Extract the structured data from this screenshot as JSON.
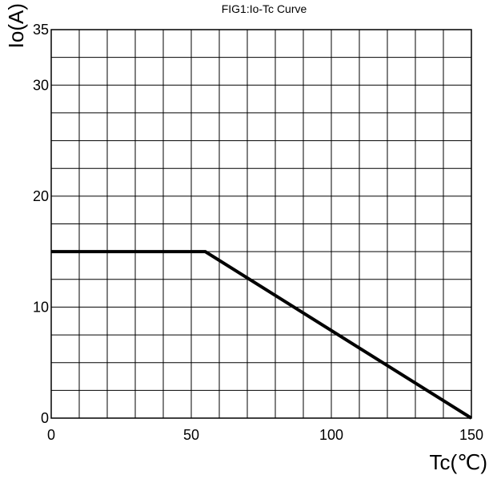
{
  "chart_data": {
    "type": "line",
    "title": "FIG1:Io-Tc Curve",
    "xlabel": "Tc(℃)",
    "ylabel": "Io(A)",
    "xlim": [
      0,
      150
    ],
    "ylim": [
      0,
      35
    ],
    "x_ticks": [
      0,
      50,
      100,
      150
    ],
    "y_ticks": [
      0,
      10,
      20,
      30,
      35
    ],
    "grid": true,
    "grid_x_step": 10,
    "grid_y_step": 2.5,
    "series": [
      {
        "x": [
          0,
          55,
          150
        ],
        "y": [
          15,
          15,
          0
        ],
        "color": "#000000"
      }
    ]
  }
}
